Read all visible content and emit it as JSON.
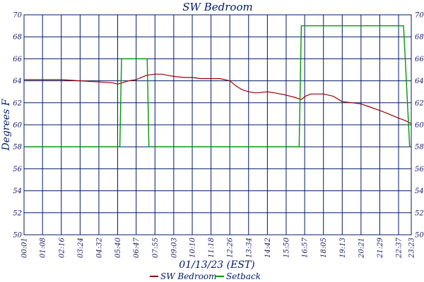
{
  "chart_data": {
    "type": "line",
    "title": "SW Bedroom",
    "xlabel": "01/13/23 (EST)",
    "ylabel": "Degrees F",
    "x_tick_labels": [
      "00:01",
      "01:08",
      "02:16",
      "03:24",
      "04:32",
      "05:40",
      "06:47",
      "07:55",
      "09:03",
      "10:10",
      "11:18",
      "12:26",
      "13:34",
      "14:42",
      "15:50",
      "16:57",
      "18:05",
      "19:13",
      "20:21",
      "21:29",
      "22:37",
      "23:23"
    ],
    "ylim": [
      50,
      70
    ],
    "y_ticks": [
      50,
      52,
      54,
      56,
      58,
      60,
      62,
      64,
      66,
      68,
      70
    ],
    "grid": true,
    "legend_position": "bottom",
    "series": [
      {
        "name": "SW Bedroom",
        "color": "#990000",
        "points": [
          [
            "00:01",
            64.1
          ],
          [
            "01:08",
            64.1
          ],
          [
            "02:16",
            64.1
          ],
          [
            "03:24",
            64.0
          ],
          [
            "04:32",
            63.9
          ],
          [
            "05:25",
            63.8
          ],
          [
            "05:40",
            63.7
          ],
          [
            "05:55",
            63.8
          ],
          [
            "06:20",
            64.0
          ],
          [
            "06:47",
            64.1
          ],
          [
            "07:05",
            64.3
          ],
          [
            "07:25",
            64.5
          ],
          [
            "07:55",
            64.6
          ],
          [
            "08:20",
            64.6
          ],
          [
            "08:40",
            64.5
          ],
          [
            "09:03",
            64.4
          ],
          [
            "09:40",
            64.3
          ],
          [
            "10:10",
            64.3
          ],
          [
            "10:40",
            64.2
          ],
          [
            "11:18",
            64.2
          ],
          [
            "11:50",
            64.2
          ],
          [
            "12:26",
            64.0
          ],
          [
            "12:50",
            63.5
          ],
          [
            "13:10",
            63.2
          ],
          [
            "13:34",
            63.0
          ],
          [
            "14:00",
            62.9
          ],
          [
            "14:42",
            63.0
          ],
          [
            "15:10",
            62.9
          ],
          [
            "15:50",
            62.7
          ],
          [
            "16:20",
            62.5
          ],
          [
            "16:45",
            62.3
          ],
          [
            "17:00",
            62.6
          ],
          [
            "17:20",
            62.8
          ],
          [
            "18:05",
            62.8
          ],
          [
            "18:40",
            62.6
          ],
          [
            "19:13",
            62.1
          ],
          [
            "19:50",
            62.0
          ],
          [
            "20:21",
            61.9
          ],
          [
            "20:55",
            61.6
          ],
          [
            "21:29",
            61.3
          ],
          [
            "22:00",
            61.0
          ],
          [
            "22:37",
            60.6
          ],
          [
            "23:00",
            60.4
          ],
          [
            "23:23",
            60.1
          ]
        ]
      },
      {
        "name": "Setback",
        "color": "#009900",
        "points": [
          [
            "00:01",
            58
          ],
          [
            "05:48",
            58
          ],
          [
            "05:54",
            66
          ],
          [
            "07:27",
            66
          ],
          [
            "07:33",
            58
          ],
          [
            "16:37",
            58
          ],
          [
            "16:45",
            69
          ],
          [
            "22:55",
            69
          ],
          [
            "23:17",
            58
          ],
          [
            "23:23",
            58
          ]
        ]
      }
    ]
  }
}
